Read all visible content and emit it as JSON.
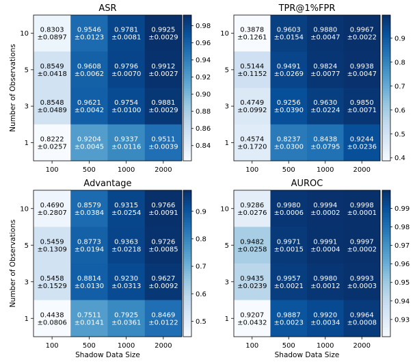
{
  "figure": {
    "shared_ylabel": "Number of Observations",
    "shared_xlabel": "Shadow Data Size"
  },
  "chart_data": [
    {
      "type": "heatmap",
      "title": "ASR",
      "x_categories": [
        "100",
        "500",
        "1000",
        "2000"
      ],
      "y_categories": [
        "10",
        "5",
        "3",
        "1"
      ],
      "values": [
        [
          0.8303,
          0.9546,
          0.9781,
          0.9925
        ],
        [
          0.8549,
          0.9608,
          0.9796,
          0.9912
        ],
        [
          0.8548,
          0.9621,
          0.9754,
          0.9881
        ],
        [
          0.8222,
          0.9204,
          0.9337,
          0.9511
        ]
      ],
      "std": [
        [
          0.0897,
          0.0123,
          0.0081,
          0.0029
        ],
        [
          0.0418,
          0.0062,
          0.007,
          0.0027
        ],
        [
          0.0489,
          0.0042,
          0.01,
          0.0029
        ],
        [
          0.0257,
          0.0045,
          0.0116,
          0.0039
        ]
      ],
      "cell_text": [
        [
          "0.8303\n±0.0897",
          "0.9546\n±0.0123",
          "0.9781\n±0.0081",
          "0.9925\n±0.0029"
        ],
        [
          "0.8549\n±0.0418",
          "0.9608\n±0.0062",
          "0.9796\n±0.0070",
          "0.9912\n±0.0027"
        ],
        [
          "0.8548\n±0.0489",
          "0.9621\n±0.0042",
          "0.9754\n±0.0100",
          "0.9881\n±0.0029"
        ],
        [
          "0.8222\n±0.0257",
          "0.9204\n±0.0045",
          "0.9337\n±0.0116",
          "0.9511\n±0.0039"
        ]
      ],
      "colorbar": {
        "min": 0.8222,
        "max": 0.9925,
        "ticks": [
          "0.84",
          "0.86",
          "0.88",
          "0.90",
          "0.92",
          "0.94",
          "0.96",
          "0.98"
        ]
      },
      "xlabel": "",
      "ylabel": "Number of Observations"
    },
    {
      "type": "heatmap",
      "title": "TPR@1%FPR",
      "x_categories": [
        "100",
        "500",
        "1000",
        "2000"
      ],
      "y_categories": [
        "10",
        "5",
        "3",
        "1"
      ],
      "values": [
        [
          0.3878,
          0.9603,
          0.988,
          0.9967
        ],
        [
          0.5144,
          0.9491,
          0.9824,
          0.9938
        ],
        [
          0.4749,
          0.9256,
          0.963,
          0.985
        ],
        [
          0.4574,
          0.8237,
          0.8438,
          0.9244
        ]
      ],
      "std": [
        [
          0.1261,
          0.0154,
          0.0047,
          0.0022
        ],
        [
          0.1152,
          0.0269,
          0.0077,
          0.0047
        ],
        [
          0.0992,
          0.039,
          0.0224,
          0.0071
        ],
        [
          0.172,
          0.03,
          0.0795,
          0.0236
        ]
      ],
      "cell_text": [
        [
          "0.3878\n±0.1261",
          "0.9603\n±0.0154",
          "0.9880\n±0.0047",
          "0.9967\n±0.0022"
        ],
        [
          "0.5144\n±0.1152",
          "0.9491\n±0.0269",
          "0.9824\n±0.0077",
          "0.9938\n±0.0047"
        ],
        [
          "0.4749\n±0.0992",
          "0.9256\n±0.0390",
          "0.9630\n±0.0224",
          "0.9850\n±0.0071"
        ],
        [
          "0.4574\n±0.1720",
          "0.8237\n±0.0300",
          "0.8438\n±0.0795",
          "0.9244\n±0.0236"
        ]
      ],
      "colorbar": {
        "min": 0.3878,
        "max": 0.9967,
        "ticks": [
          "0.4",
          "0.5",
          "0.6",
          "0.7",
          "0.8",
          "0.9"
        ]
      },
      "xlabel": "",
      "ylabel": ""
    },
    {
      "type": "heatmap",
      "title": "Advantage",
      "x_categories": [
        "100",
        "500",
        "1000",
        "2000"
      ],
      "y_categories": [
        "10",
        "5",
        "3",
        "1"
      ],
      "values": [
        [
          0.469,
          0.8579,
          0.9315,
          0.9766
        ],
        [
          0.5459,
          0.8773,
          0.9363,
          0.9726
        ],
        [
          0.5458,
          0.8814,
          0.923,
          0.9627
        ],
        [
          0.4438,
          0.7511,
          0.7925,
          0.8469
        ]
      ],
      "std": [
        [
          0.2807,
          0.0384,
          0.0254,
          0.0091
        ],
        [
          0.1309,
          0.0194,
          0.0218,
          0.0085
        ],
        [
          0.1529,
          0.013,
          0.0313,
          0.0092
        ],
        [
          0.0806,
          0.0141,
          0.0361,
          0.0122
        ]
      ],
      "cell_text": [
        [
          "0.4690\n±0.2807",
          "0.8579\n±0.0384",
          "0.9315\n±0.0254",
          "0.9766\n±0.0091"
        ],
        [
          "0.5459\n±0.1309",
          "0.8773\n±0.0194",
          "0.9363\n±0.0218",
          "0.9726\n±0.0085"
        ],
        [
          "0.5458\n±0.1529",
          "0.8814\n±0.0130",
          "0.9230\n±0.0313",
          "0.9627\n±0.0092"
        ],
        [
          "0.4438\n±0.0806",
          "0.7511\n±0.0141",
          "0.7925\n±0.0361",
          "0.8469\n±0.0122"
        ]
      ],
      "colorbar": {
        "min": 0.4438,
        "max": 0.9766,
        "ticks": [
          "0.5",
          "0.6",
          "0.7",
          "0.8",
          "0.9"
        ]
      },
      "xlabel": "Shadow Data Size",
      "ylabel": "Number of Observations"
    },
    {
      "type": "heatmap",
      "title": "AUROC",
      "x_categories": [
        "100",
        "500",
        "1000",
        "2000"
      ],
      "y_categories": [
        "10",
        "5",
        "3",
        "1"
      ],
      "values": [
        [
          0.9286,
          0.998,
          0.9994,
          0.9998
        ],
        [
          0.9482,
          0.9971,
          0.9991,
          0.9997
        ],
        [
          0.9435,
          0.9957,
          0.998,
          0.9993
        ],
        [
          0.9207,
          0.9887,
          0.992,
          0.9964
        ]
      ],
      "std": [
        [
          0.0276,
          0.0006,
          0.0002,
          0.0001
        ],
        [
          0.0258,
          0.0015,
          0.0004,
          0.0002
        ],
        [
          0.0239,
          0.0021,
          0.0012,
          0.0003
        ],
        [
          0.0432,
          0.0023,
          0.0034,
          0.0008
        ]
      ],
      "cell_text": [
        [
          "0.9286\n±0.0276",
          "0.9980\n±0.0006",
          "0.9994\n±0.0002",
          "0.9998\n±0.0001"
        ],
        [
          "0.9482\n±0.0258",
          "0.9971\n±0.0015",
          "0.9991\n±0.0004",
          "0.9997\n±0.0002"
        ],
        [
          "0.9435\n±0.0239",
          "0.9957\n±0.0021",
          "0.9980\n±0.0012",
          "0.9993\n±0.0003"
        ],
        [
          "0.9207\n±0.0432",
          "0.9887\n±0.0023",
          "0.9920\n±0.0034",
          "0.9964\n±0.0008"
        ]
      ],
      "colorbar": {
        "min": 0.9207,
        "max": 0.9998,
        "ticks": [
          "0.93",
          "0.94",
          "0.95",
          "0.96",
          "0.97",
          "0.98",
          "0.99"
        ]
      },
      "xlabel": "Shadow Data Size",
      "ylabel": ""
    }
  ]
}
